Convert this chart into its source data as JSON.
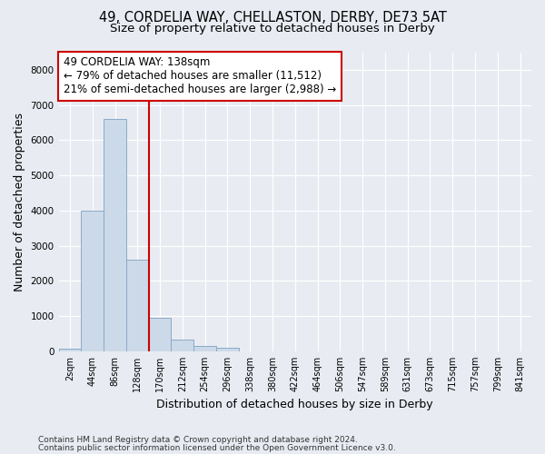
{
  "title_line1": "49, CORDELIA WAY, CHELLASTON, DERBY, DE73 5AT",
  "title_line2": "Size of property relative to detached houses in Derby",
  "xlabel": "Distribution of detached houses by size in Derby",
  "ylabel": "Number of detached properties",
  "bar_labels": [
    "2sqm",
    "44sqm",
    "86sqm",
    "128sqm",
    "170sqm",
    "212sqm",
    "254sqm",
    "296sqm",
    "338sqm",
    "380sqm",
    "422sqm",
    "464sqm",
    "506sqm",
    "547sqm",
    "589sqm",
    "631sqm",
    "673sqm",
    "715sqm",
    "757sqm",
    "799sqm",
    "841sqm"
  ],
  "bar_values": [
    60,
    4000,
    6600,
    2600,
    950,
    340,
    140,
    110,
    0,
    0,
    0,
    0,
    0,
    0,
    0,
    0,
    0,
    0,
    0,
    0,
    0
  ],
  "bar_color": "#ccd9e8",
  "bar_edge_color": "#8aaac8",
  "vline_color": "#cc0000",
  "annotation_line1": "49 CORDELIA WAY: 138sqm",
  "annotation_line2": "← 79% of detached houses are smaller (11,512)",
  "annotation_line3": "21% of semi-detached houses are larger (2,988) →",
  "annotation_box_color": "#ffffff",
  "annotation_box_edge": "#cc0000",
  "ylim": [
    0,
    8500
  ],
  "yticks": [
    0,
    1000,
    2000,
    3000,
    4000,
    5000,
    6000,
    7000,
    8000
  ],
  "background_color": "#e8ecf2",
  "plot_background": "#e8ecf2",
  "footer_line1": "Contains HM Land Registry data © Crown copyright and database right 2024.",
  "footer_line2": "Contains public sector information licensed under the Open Government Licence v3.0.",
  "title_fontsize": 10.5,
  "subtitle_fontsize": 9.5,
  "axis_label_fontsize": 9,
  "tick_fontsize": 7,
  "annotation_fontsize": 8.5,
  "footer_fontsize": 6.5
}
